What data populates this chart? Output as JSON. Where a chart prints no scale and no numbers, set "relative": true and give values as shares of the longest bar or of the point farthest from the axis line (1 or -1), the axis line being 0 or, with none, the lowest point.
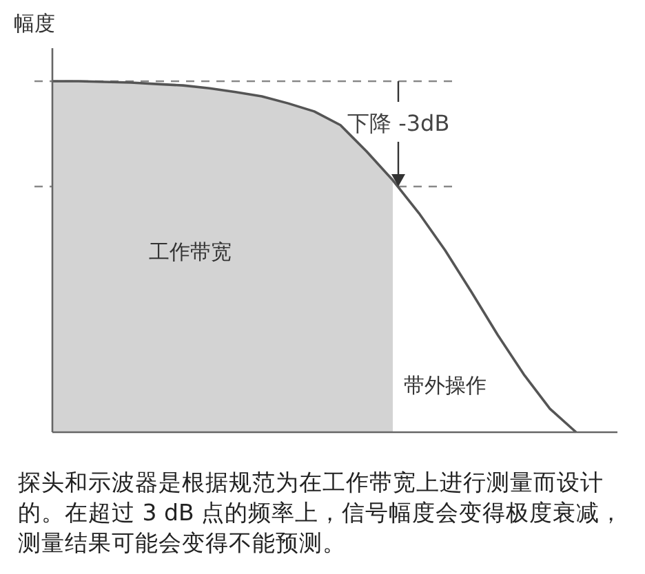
{
  "chart_data": {
    "type": "line",
    "relative": true,
    "ylabel": "幅度",
    "categories": [
      null,
      null,
      null,
      null,
      null,
      null,
      null,
      null,
      null,
      null,
      null,
      null,
      null,
      null,
      null,
      null,
      null,
      null,
      null,
      null,
      null
    ],
    "series": [
      {
        "type": "area",
        "color": "#d3d3d3",
        "values": [
          1.0,
          1.0,
          0.998,
          0.996,
          0.992,
          0.988,
          0.98,
          0.969,
          0.957,
          0.937,
          0.914,
          0.875,
          0.8,
          0.718,
          null,
          null,
          null,
          null,
          null,
          null,
          null
        ]
      },
      {
        "color": "#555555",
        "values": [
          1.0,
          1.0,
          0.998,
          0.996,
          0.992,
          0.988,
          0.98,
          0.969,
          0.957,
          0.937,
          0.914,
          0.875,
          0.8,
          0.718,
          0.624,
          0.518,
          0.4,
          0.278,
          0.165,
          0.067,
          0.0
        ]
      }
    ],
    "ref_lines": [
      {
        "axis": "y",
        "value": 1.0,
        "color": "#888888",
        "line_style": "dashed"
      },
      {
        "axis": "y",
        "value": 0.7,
        "color": "#888888",
        "line_style": "dashed"
      }
    ],
    "annotations": [
      "下降 -3dB",
      "工作带宽",
      "带外操作",
      "探头和示波器是根据规范为在工作带宽上进行测量而设计的。在超过 3 dB 点的频率上，信号幅度会变得极度衰减，测量结果可能会变得不能预测。"
    ]
  }
}
